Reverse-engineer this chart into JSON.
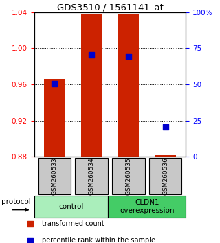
{
  "title": "GDS3510 / 1561141_at",
  "samples": [
    "GSM260533",
    "GSM260534",
    "GSM260535",
    "GSM260536"
  ],
  "bar_bottom": 0.88,
  "bar_tops": [
    0.966,
    1.038,
    1.038,
    0.882
  ],
  "blue_y": [
    0.961,
    0.993,
    0.991,
    0.913
  ],
  "ylim": [
    0.88,
    1.04
  ],
  "yticks_left": [
    0.88,
    0.92,
    0.96,
    1.0,
    1.04
  ],
  "yticks_right_pct": [
    0,
    25,
    50,
    75,
    100
  ],
  "bar_color": "#CC2200",
  "blue_color": "#0000CC",
  "bar_width": 0.55,
  "group_labels": [
    "control",
    "CLDN1\noverexpression"
  ],
  "group_colors": [
    "#AAEEBB",
    "#44CC66"
  ],
  "protocol_label": "protocol",
  "legend_red": "transformed count",
  "legend_blue": "percentile rank within the sample",
  "sample_bg_color": "#C8C8C8",
  "right_ytick_label": [
    "0",
    "25",
    "50",
    "75",
    "100%"
  ]
}
